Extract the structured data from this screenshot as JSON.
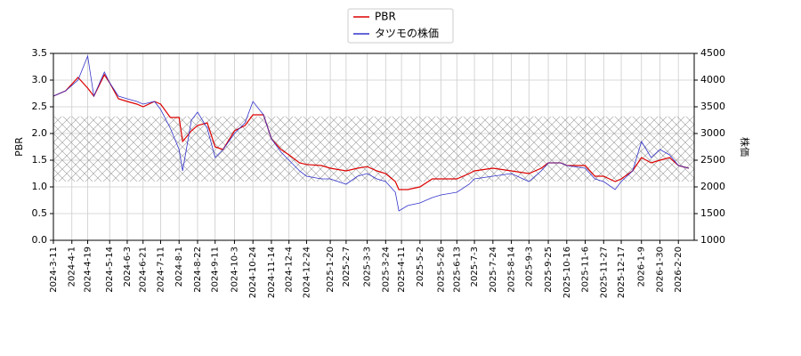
{
  "chart_data": {
    "type": "line",
    "ylabel": "PBR",
    "y2label": "株価",
    "x": [
      "2024-03-11",
      "2024-03-25",
      "2024-04-08",
      "2024-04-19",
      "2024-04-26",
      "2024-05-08",
      "2024-05-14",
      "2024-05-24",
      "2024-06-03",
      "2024-06-14",
      "2024-06-21",
      "2024-07-04",
      "2024-07-11",
      "2024-07-22",
      "2024-08-01",
      "2024-08-05",
      "2024-08-15",
      "2024-08-22",
      "2024-09-02",
      "2024-09-11",
      "2024-09-20",
      "2024-10-03",
      "2024-10-15",
      "2024-10-24",
      "2024-11-05",
      "2024-11-14",
      "2024-11-25",
      "2024-12-04",
      "2024-12-16",
      "2024-12-24",
      "2025-01-10",
      "2025-01-20",
      "2025-02-07",
      "2025-02-20",
      "2025-03-03",
      "2025-03-14",
      "2025-03-24",
      "2025-04-04",
      "2025-04-08",
      "2025-04-18",
      "2025-05-02",
      "2025-05-16",
      "2025-05-26",
      "2025-06-13",
      "2025-06-27",
      "2025-07-03",
      "2025-07-24",
      "2025-08-14",
      "2025-09-03",
      "2025-09-17",
      "2025-09-25",
      "2025-10-09",
      "2025-10-16",
      "2025-11-06",
      "2025-11-17",
      "2025-11-27",
      "2025-12-10",
      "2025-12-17",
      "2025-12-30",
      "2026-01-09",
      "2026-01-20",
      "2026-01-30",
      "2026-02-10",
      "2026-02-20",
      "2026-03-04"
    ],
    "series": [
      {
        "name": "PBR",
        "color": "#dd0000",
        "axis": "y",
        "values": [
          2.7,
          2.8,
          3.05,
          2.85,
          2.7,
          3.1,
          2.95,
          2.65,
          2.6,
          2.55,
          2.5,
          2.6,
          2.55,
          2.3,
          2.3,
          1.85,
          2.05,
          2.15,
          2.2,
          1.75,
          1.7,
          2.05,
          2.15,
          2.35,
          2.35,
          1.9,
          1.7,
          1.6,
          1.45,
          1.42,
          1.4,
          1.35,
          1.3,
          1.35,
          1.38,
          1.3,
          1.25,
          1.1,
          0.95,
          0.95,
          1.0,
          1.15,
          1.15,
          1.15,
          1.25,
          1.3,
          1.35,
          1.3,
          1.25,
          1.35,
          1.45,
          1.45,
          1.4,
          1.4,
          1.2,
          1.2,
          1.1,
          1.15,
          1.3,
          1.55,
          1.45,
          1.5,
          1.55,
          1.4,
          1.35
        ]
      },
      {
        "name": "タツモの株価",
        "color": "#3333cc",
        "axis": "y2",
        "values": [
          3700,
          3800,
          4000,
          4450,
          3700,
          4150,
          3950,
          3700,
          3650,
          3600,
          3550,
          3600,
          3450,
          3100,
          2700,
          2300,
          3250,
          3400,
          3100,
          2550,
          2700,
          3000,
          3200,
          3600,
          3350,
          2900,
          2650,
          2500,
          2300,
          2200,
          2150,
          2150,
          2050,
          2200,
          2250,
          2150,
          2100,
          1900,
          1550,
          1650,
          1700,
          1800,
          1850,
          1900,
          2050,
          2150,
          2200,
          2250,
          2100,
          2300,
          2450,
          2450,
          2400,
          2350,
          2150,
          2100,
          1950,
          2100,
          2300,
          2850,
          2550,
          2700,
          2600,
          2400,
          2350
        ]
      }
    ],
    "band": [
      1.1,
      2.32
    ],
    "xlim": [
      "2024-03-11",
      "2026-03-10"
    ],
    "xticks": [
      "2024-3-11",
      "2024-4-1",
      "2024-4-19",
      "2024-5-14",
      "2024-6-3",
      "2024-6-21",
      "2024-7-11",
      "2024-8-1",
      "2024-8-22",
      "2024-9-11",
      "2024-10-3",
      "2024-10-24",
      "2024-11-14",
      "2024-12-4",
      "2024-12-24",
      "2025-1-20",
      "2025-2-7",
      "2025-3-3",
      "2025-3-24",
      "2025-4-11",
      "2025-5-2",
      "2025-5-26",
      "2025-6-13",
      "2025-7-3",
      "2025-7-24",
      "2025-8-14",
      "2025-9-3",
      "2025-9-25",
      "2025-10-16",
      "2025-11-6",
      "2025-11-27",
      "2025-12-17",
      "2026-1-9",
      "2026-1-30",
      "2026-2-20"
    ],
    "ylim": [
      0,
      3.5
    ],
    "yticks": [
      {
        "value": 0,
        "label": "0.0"
      },
      0.5,
      {
        "value": 1,
        "label": "1.0"
      },
      1.5,
      {
        "value": 2,
        "label": "2.0"
      },
      2.5,
      {
        "value": 3,
        "label": "3.0"
      },
      3.5
    ],
    "y2lim": [
      1000,
      4500
    ],
    "y2ticks": [
      1000,
      1500,
      2000,
      2500,
      3000,
      3500,
      4000,
      4500
    ],
    "grid": true,
    "legend": "upper center"
  }
}
